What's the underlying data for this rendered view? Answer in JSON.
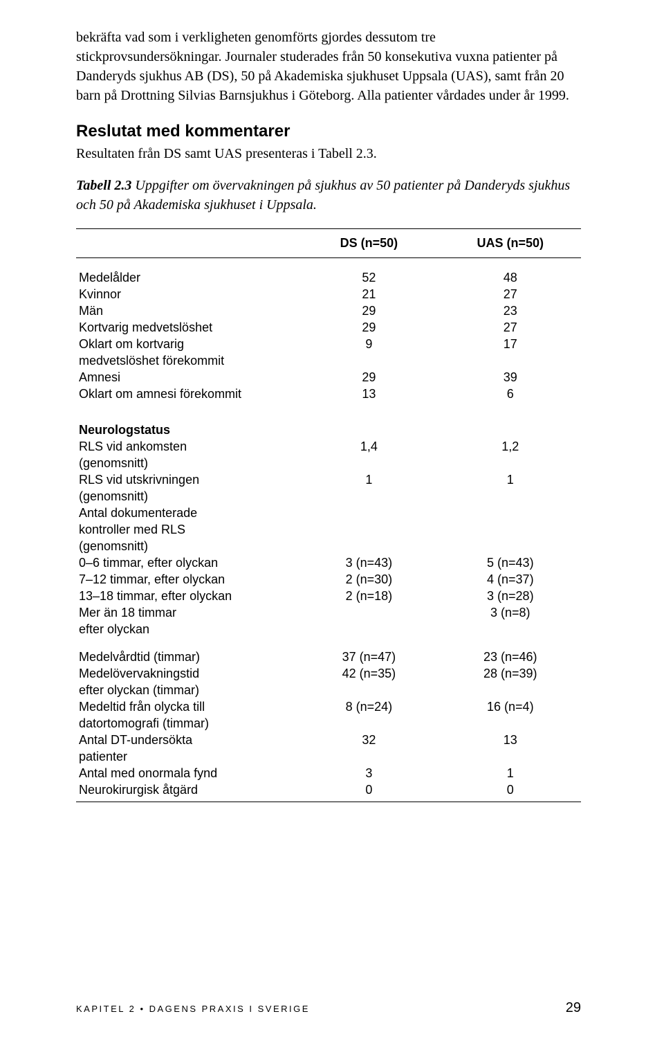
{
  "paragraph1": "bekräfta vad som i verkligheten genomförts gjordes dessutom tre stickprovsundersökningar. Journaler studerades från 50 konsekutiva vuxna patienter på Danderyds sjukhus AB (DS), 50 på Akademiska sjukhuset Uppsala (UAS), samt från 20 barn på Drottning Silvias Barnsjukhus i Göteborg. Alla patienter vårdades under år 1999.",
  "heading": "Reslutat med kommentarer",
  "heading_sub": "Resultaten från DS samt UAS presenteras i Tabell 2.3.",
  "caption_bold": "Tabell 2.3",
  "caption_rest": " Uppgifter om övervakningen på sjukhus av 50 patienter på Danderyds sjukhus och 50 på Akademiska sjukhuset i Uppsala.",
  "table": {
    "col_ds": "DS (n=50)",
    "col_uas": "UAS (n=50)",
    "sec1": [
      {
        "label": "Medelålder",
        "ds": "52",
        "uas": "48"
      },
      {
        "label": "Kvinnor",
        "ds": "21",
        "uas": "27"
      },
      {
        "label": "Män",
        "ds": "29",
        "uas": "23"
      },
      {
        "label": "Kortvarig medvetslöshet",
        "ds": "29",
        "uas": "27"
      },
      {
        "label": "Oklart om kortvarig",
        "ds": "9",
        "uas": "17"
      },
      {
        "label": "medvetslöshet förekommit",
        "ds": "",
        "uas": ""
      },
      {
        "label": "Amnesi",
        "ds": "29",
        "uas": "39"
      },
      {
        "label": "Oklart om amnesi förekommit",
        "ds": "13",
        "uas": "6"
      }
    ],
    "sec2_head": "Neurologstatus",
    "sec2": [
      {
        "label": "RLS vid ankomsten",
        "ds": "1,4",
        "uas": "1,2"
      },
      {
        "label": "(genomsnitt)",
        "ds": "",
        "uas": ""
      },
      {
        "label": "RLS vid utskrivningen",
        "ds": "1",
        "uas": "1"
      },
      {
        "label": "(genomsnitt)",
        "ds": "",
        "uas": ""
      },
      {
        "label": "Antal dokumenterade",
        "ds": "",
        "uas": ""
      },
      {
        "label": "kontroller med RLS",
        "ds": "",
        "uas": ""
      },
      {
        "label": "(genomsnitt)",
        "ds": "",
        "uas": ""
      },
      {
        "label": "0–6 timmar, efter olyckan",
        "ds": "3 (n=43)",
        "uas": "5 (n=43)"
      },
      {
        "label": "7–12 timmar, efter olyckan",
        "ds": "2 (n=30)",
        "uas": "4 (n=37)"
      },
      {
        "label": "13–18 timmar, efter olyckan",
        "ds": "2 (n=18)",
        "uas": "3 (n=28)"
      },
      {
        "label": "Mer än 18 timmar",
        "ds": "",
        "uas": "3 (n=8)"
      },
      {
        "label": "efter olyckan",
        "ds": "",
        "uas": ""
      }
    ],
    "sec3": [
      {
        "label": "Medelvårdtid (timmar)",
        "ds": "37 (n=47)",
        "uas": "23 (n=46)"
      },
      {
        "label": "Medelövervakningstid",
        "ds": "42 (n=35)",
        "uas": "28 (n=39)"
      },
      {
        "label": "efter olyckan (timmar)",
        "ds": "",
        "uas": ""
      },
      {
        "label": "Medeltid från olycka till",
        "ds": "8 (n=24)",
        "uas": "16 (n=4)"
      },
      {
        "label": "datortomografi (timmar)",
        "ds": "",
        "uas": ""
      },
      {
        "label": "Antal DT-undersökta",
        "ds": "32",
        "uas": "13"
      },
      {
        "label": "patienter",
        "ds": "",
        "uas": ""
      },
      {
        "label": "Antal med onormala fynd",
        "ds": "3",
        "uas": "1"
      },
      {
        "label": "Neurokirurgisk åtgärd",
        "ds": "0",
        "uas": "0"
      }
    ]
  },
  "footer_left": "KAPITEL 2 • DAGENS PRAXIS I SVERIGE",
  "footer_page": "29"
}
